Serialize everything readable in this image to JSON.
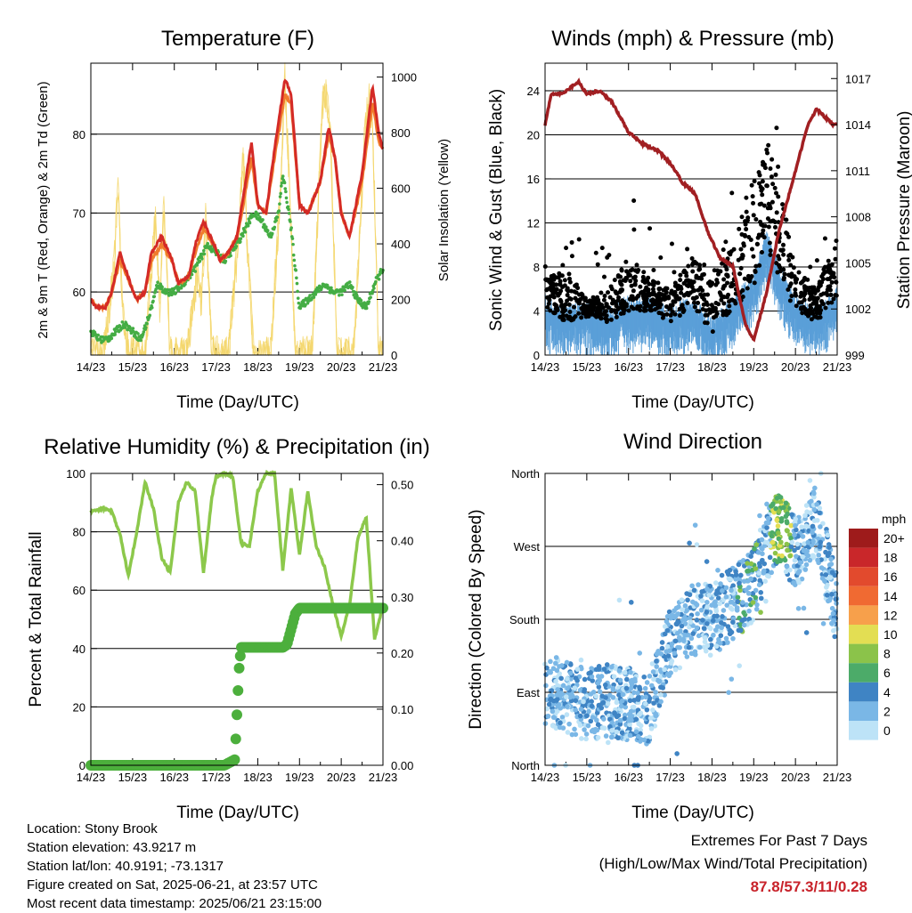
{
  "panels": {
    "temperature": {
      "title": "Temperature (F)",
      "xlabel": "Time (Day/UTC)",
      "ylabel": "2m & 9m T (Red, Orange) & 2m Td (Green)",
      "y2label": "Solar Insolation (Yellow)"
    },
    "winds": {
      "title": "Winds (mph) & Pressure (mb)",
      "xlabel": "Time (Day/UTC)",
      "ylabel": "Sonic Wind & Gust (Blue, Black)",
      "y2label": "Station Pressure (Maroon)"
    },
    "humidity": {
      "title": "Relative Humidity (%) & Precipitation (in)",
      "xlabel": "Time (Day/UTC)",
      "ylabel": "Percent & Total Rainfall"
    },
    "direction": {
      "title": "Wind Direction",
      "xlabel": "Time (Day/UTC)",
      "ylabel": "Direction (Colored By Speed)",
      "colorbar_title": "mph"
    }
  },
  "info": {
    "location": "Location: Stony Brook",
    "elevation": "Station elevation: 43.9217 m",
    "latlon": "Station lat/lon: 40.9191; -73.1317",
    "created": "Figure created on Sat, 2025-06-21, at 23:57 UTC",
    "recent": "Most recent data timestamp: 2025/06/21 23:15:00"
  },
  "extremes": {
    "line1": "Extremes For Past 7 Days",
    "line2": "(High/Low/Max Wind/Total Precipitation)",
    "values": "87.8/57.3/11/0.28"
  },
  "colors": {
    "temp2m": "#d42a26",
    "temp9m": "#f07b2d",
    "dewpoint": "#44ad44",
    "solar": "#f4d66a",
    "wind": "#5a9fd8",
    "gust": "#000000",
    "pressure": "#a11f22",
    "rh": "#8cc84b",
    "precip": "#4caf3c"
  },
  "chart_data": [
    {
      "id": "temperature",
      "type": "line",
      "x_ticks": [
        "14/23",
        "15/23",
        "16/23",
        "17/23",
        "18/23",
        "19/23",
        "20/23",
        "21/23"
      ],
      "x_range": [
        0,
        7
      ],
      "ylim": [
        52,
        89
      ],
      "y_ticks": [
        60,
        70,
        80
      ],
      "y2lim": [
        0,
        1050
      ],
      "y2_ticks": [
        0,
        200,
        400,
        600,
        800,
        1000
      ],
      "series": [
        {
          "key": "t2m",
          "x": [
            0,
            0.15,
            0.35,
            0.5,
            0.7,
            0.95,
            1.1,
            1.3,
            1.45,
            1.7,
            1.95,
            2.1,
            2.35,
            2.5,
            2.7,
            2.95,
            3.1,
            3.3,
            3.5,
            3.65,
            3.85,
            4.0,
            4.2,
            4.4,
            4.65,
            4.8,
            5.0,
            5.2,
            5.5,
            5.7,
            5.85,
            6.0,
            6.2,
            6.5,
            6.75,
            6.9,
            7.0
          ],
          "y": [
            59,
            58,
            58,
            60,
            65,
            61,
            59,
            60,
            65,
            67,
            64,
            61,
            62,
            66,
            69,
            66,
            64,
            65,
            67,
            72,
            79,
            71,
            70,
            78,
            87,
            85,
            71,
            70,
            74,
            81,
            77,
            70,
            67,
            75,
            86,
            80,
            78
          ]
        },
        {
          "key": "t9m",
          "x": [
            0,
            0.15,
            0.35,
            0.5,
            0.7,
            0.95,
            1.1,
            1.3,
            1.45,
            1.7,
            1.95,
            2.1,
            2.35,
            2.5,
            2.7,
            2.95,
            3.1,
            3.3,
            3.5,
            3.65,
            3.85,
            4.0,
            4.2,
            4.4,
            4.65,
            4.8,
            5.0,
            5.2,
            5.5,
            5.7,
            5.85,
            6.0,
            6.2,
            6.5,
            6.75,
            6.9,
            7.0
          ],
          "y": [
            59,
            58,
            58,
            60,
            64,
            61,
            59,
            60,
            64,
            66,
            64,
            61,
            62,
            65,
            68,
            66,
            64,
            65,
            67,
            71,
            77,
            71,
            70,
            77,
            85,
            84,
            71,
            70,
            74,
            80,
            77,
            70,
            67,
            74,
            84,
            79,
            78
          ]
        },
        {
          "key": "td2m",
          "x": [
            0,
            0.2,
            0.4,
            0.6,
            0.8,
            1.0,
            1.2,
            1.4,
            1.6,
            1.8,
            2.0,
            2.2,
            2.5,
            2.8,
            3.0,
            3.2,
            3.5,
            3.7,
            3.9,
            4.1,
            4.3,
            4.5,
            4.6,
            4.8,
            5.0,
            5.2,
            5.4,
            5.6,
            5.8,
            6.0,
            6.2,
            6.4,
            6.6,
            6.8,
            7.0
          ],
          "y": [
            55,
            54,
            54,
            55,
            56,
            55,
            54,
            57,
            61,
            60,
            60,
            61,
            63,
            66,
            65,
            64,
            66,
            68,
            70,
            69,
            67,
            70,
            75,
            68,
            58,
            59,
            60,
            61,
            60,
            60,
            61,
            59,
            58,
            61,
            63
          ]
        },
        {
          "key": "solar",
          "x": [
            0,
            0.3,
            0.55,
            0.65,
            0.75,
            0.9,
            1.3,
            1.55,
            1.65,
            1.75,
            1.9,
            2.3,
            2.55,
            2.65,
            2.75,
            2.9,
            3.3,
            3.55,
            3.65,
            3.75,
            3.9,
            4.3,
            4.55,
            4.65,
            4.75,
            4.9,
            5.3,
            5.55,
            5.65,
            5.75,
            5.9,
            6.3,
            6.55,
            6.65,
            6.75,
            6.9,
            7.0
          ],
          "y": [
            0,
            0,
            300,
            620,
            200,
            0,
            0,
            500,
            180,
            550,
            0,
            0,
            300,
            180,
            500,
            0,
            0,
            450,
            720,
            400,
            0,
            0,
            600,
            1000,
            650,
            0,
            0,
            900,
            950,
            750,
            0,
            0,
            750,
            920,
            850,
            0,
            0
          ]
        }
      ]
    },
    {
      "id": "winds",
      "type": "scatter",
      "x_ticks": [
        "14/23",
        "15/23",
        "16/23",
        "17/23",
        "18/23",
        "19/23",
        "20/23",
        "21/23"
      ],
      "x_range": [
        0,
        7
      ],
      "ylim": [
        0,
        26.5
      ],
      "y_ticks": [
        0,
        4,
        8,
        12,
        16,
        20,
        24
      ],
      "y2lim": [
        999,
        1018
      ],
      "y2_ticks": [
        999,
        1002,
        1005,
        1008,
        1011,
        1014,
        1017
      ],
      "series": [
        {
          "key": "wind_envelope",
          "x": [
            0,
            0.5,
            1,
            1.5,
            2,
            2.5,
            3,
            3.5,
            4,
            4.5,
            5,
            5.3,
            5.6,
            6,
            6.5,
            7
          ],
          "y": [
            4,
            3,
            3.5,
            3,
            4,
            4,
            3,
            4,
            2,
            4,
            6,
            10,
            7,
            4,
            3,
            5
          ]
        },
        {
          "key": "gust_envelope",
          "x": [
            0,
            0.5,
            1,
            1.5,
            2,
            2.5,
            3,
            3.5,
            4,
            4.5,
            5,
            5.3,
            5.6,
            6,
            6.5,
            7
          ],
          "y": [
            7,
            8,
            5,
            6,
            9,
            7,
            6,
            9,
            7,
            10,
            16,
            19,
            17,
            8,
            6,
            11
          ]
        },
        {
          "key": "pressure",
          "x": [
            0,
            0.15,
            0.4,
            0.8,
            1.0,
            1.3,
            1.6,
            2.0,
            2.3,
            2.7,
            3.0,
            3.3,
            3.6,
            3.9,
            4.2,
            4.5,
            4.8,
            5.0,
            5.3,
            5.6,
            5.9,
            6.1,
            6.3,
            6.5,
            6.7,
            6.9,
            7.0
          ],
          "y": [
            1014,
            1016,
            1016,
            1016.8,
            1016,
            1016.2,
            1015.5,
            1013.5,
            1012.8,
            1012.3,
            1011.5,
            1010.2,
            1009.5,
            1007,
            1005.3,
            1004.8,
            1001,
            1000,
            1003,
            1007,
            1010,
            1012,
            1014,
            1015,
            1014.5,
            1014,
            1014
          ]
        }
      ]
    },
    {
      "id": "humidity",
      "type": "line",
      "x_ticks": [
        "14/23",
        "15/23",
        "16/23",
        "17/23",
        "18/23",
        "19/23",
        "20/23",
        "21/23"
      ],
      "x_range": [
        0,
        7
      ],
      "ylim": [
        0,
        100
      ],
      "y_ticks": [
        0,
        20,
        40,
        60,
        80,
        100
      ],
      "y2lim": [
        0,
        0.52
      ],
      "y2_ticks": [
        "0.00",
        "0.10",
        "0.20",
        "0.30",
        "0.40",
        "0.50"
      ],
      "series": [
        {
          "key": "rh",
          "x": [
            0,
            0.3,
            0.5,
            0.7,
            0.9,
            1.1,
            1.3,
            1.5,
            1.7,
            1.9,
            2.1,
            2.3,
            2.5,
            2.7,
            2.9,
            3.0,
            3.2,
            3.4,
            3.6,
            3.8,
            4.0,
            4.2,
            4.4,
            4.6,
            4.8,
            5.0,
            5.2,
            5.4,
            5.6,
            5.8,
            6.0,
            6.2,
            6.4,
            6.6,
            6.8,
            7.0
          ],
          "y": [
            87,
            88,
            87,
            79,
            65,
            80,
            97,
            88,
            71,
            66,
            90,
            97,
            94,
            66,
            92,
            99,
            100,
            99,
            76,
            75,
            94,
            100,
            100,
            67,
            95,
            72,
            94,
            75,
            68,
            55,
            44,
            55,
            78,
            85,
            43,
            55
          ]
        },
        {
          "key": "precip",
          "x": [
            0,
            3.2,
            3.45,
            3.55,
            3.6,
            3.7,
            3.8,
            4.6,
            4.7,
            4.9,
            5.0,
            5.5,
            6.0,
            6.5,
            7.0
          ],
          "y": [
            0,
            0,
            0.01,
            0.17,
            0.21,
            0.21,
            0.21,
            0.21,
            0.215,
            0.27,
            0.28,
            0.28,
            0.28,
            0.28,
            0.28
          ]
        }
      ]
    },
    {
      "id": "direction",
      "type": "scatter",
      "x_ticks": [
        "14/23",
        "15/23",
        "16/23",
        "17/23",
        "18/23",
        "19/23",
        "20/23",
        "21/23"
      ],
      "x_range": [
        0,
        7
      ],
      "y_ticks": [
        "North",
        "East",
        "South",
        "West",
        "North"
      ],
      "ylim": [
        0,
        360
      ],
      "colorbar": {
        "labels": [
          "20+",
          "18",
          "16",
          "14",
          "12",
          "10",
          "8",
          "6",
          "4",
          "2",
          "0"
        ],
        "colors": [
          "#9e1b1b",
          "#c9272a",
          "#e24a2d",
          "#f06a32",
          "#f7a04b",
          "#e3de53",
          "#8bc34a",
          "#4cab69",
          "#3f84c4",
          "#7ab7e6",
          "#bde3f7"
        ]
      },
      "trend": {
        "x": [
          0,
          0.5,
          1,
          1.5,
          2,
          2.5,
          3,
          3.5,
          4,
          4.5,
          5,
          5.3,
          5.6,
          6,
          6.5,
          7
        ],
        "y": [
          95,
          85,
          75,
          80,
          75,
          70,
          150,
          180,
          180,
          200,
          220,
          270,
          295,
          260,
          300,
          190
        ]
      }
    }
  ]
}
